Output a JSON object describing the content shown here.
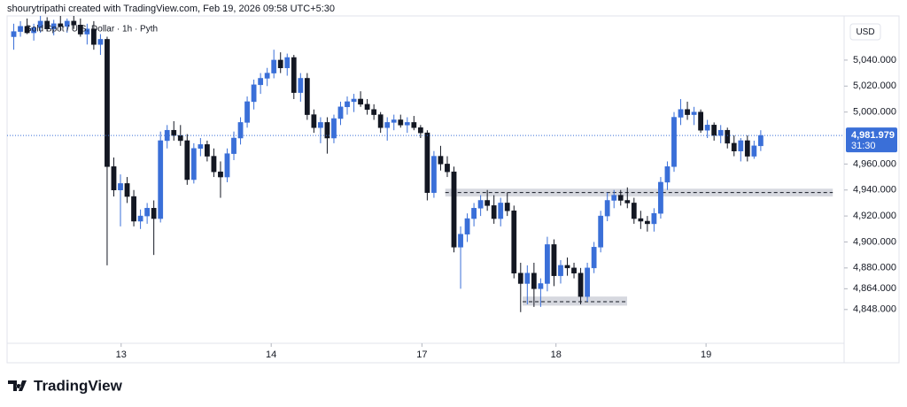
{
  "header": {
    "attribution": "shourytripathi created with TradingView.com, Feb 19, 2026 09:58 UTC+5:30",
    "symbol": "Gold Spot / U.S. Dollar · 1h · Pyth"
  },
  "chart_data": {
    "type": "candlestick",
    "currency": "USD",
    "open": [
      5058,
      5062,
      5066,
      5061,
      5065,
      5070,
      5064,
      5068,
      5066,
      5070,
      5067,
      5060,
      5064,
      5052,
      5056,
      4958,
      4940,
      4945,
      4935,
      4916,
      4920,
      4926,
      4918,
      4978,
      4986,
      4982,
      4978,
      4948,
      4972,
      4975,
      4966,
      4954,
      4950,
      4968,
      4980,
      4992,
      5008,
      5021,
      5026,
      5030,
      5040,
      5034,
      5042,
      5015,
      5026,
      4998,
      4988,
      4992,
      4980,
      4995,
      5004,
      5008,
      5010,
      5006,
      5002,
      4998,
      4988,
      4992,
      4994,
      4990,
      4992,
      4988,
      4984,
      4938,
      4966,
      4960,
      4954,
      4896,
      4906,
      4918,
      4926,
      4932,
      4928,
      4918,
      4930,
      4924,
      4876,
      4868,
      4876,
      4864,
      4868,
      4898,
      4874,
      4882,
      4880,
      4876,
      4858,
      4880,
      4896,
      4920,
      4932,
      4936,
      4932,
      4930,
      4918,
      4916,
      4914,
      4922,
      4946,
      4958,
      4996,
      5002,
      4998,
      5000,
      4986,
      4990,
      4982,
      4986,
      4976,
      4970,
      4978,
      4966,
      4974
    ],
    "high": [
      5068,
      5070,
      5072,
      5068,
      5074,
      5073,
      5071,
      5074,
      5072,
      5074,
      5072,
      5068,
      5070,
      5060,
      5058,
      4965,
      4952,
      4950,
      4940,
      4925,
      4930,
      4932,
      4985,
      4990,
      4993,
      4990,
      4983,
      4976,
      4980,
      4978,
      4972,
      4962,
      4972,
      4985,
      4996,
      5012,
      5025,
      5030,
      5034,
      5048,
      5046,
      5045,
      5044,
      5030,
      5030,
      5002,
      4996,
      4996,
      4998,
      5008,
      5012,
      5014,
      5016,
      5010,
      5006,
      5000,
      4996,
      4998,
      4998,
      4996,
      4997,
      4990,
      4986,
      4970,
      4974,
      4966,
      4958,
      4912,
      4922,
      4930,
      4936,
      4940,
      4936,
      4934,
      4938,
      4928,
      4884,
      4882,
      4884,
      4872,
      4904,
      4902,
      4886,
      4888,
      4884,
      4880,
      4884,
      4900,
      4924,
      4938,
      4940,
      4940,
      4942,
      4934,
      4924,
      4920,
      4926,
      4950,
      4962,
      5000,
      5010,
      5008,
      5004,
      5002,
      4994,
      4992,
      4990,
      4988,
      4982,
      4980,
      4982,
      4978,
      4986
    ],
    "low": [
      5048,
      5058,
      5060,
      5055,
      5061,
      5062,
      5059,
      5063,
      5061,
      5064,
      5058,
      5052,
      5048,
      5044,
      4882,
      4935,
      4912,
      4930,
      4912,
      4910,
      4914,
      4890,
      4915,
      4972,
      4978,
      4974,
      4944,
      4945,
      4966,
      4962,
      4950,
      4934,
      4946,
      4963,
      4975,
      4988,
      5002,
      5014,
      5020,
      5026,
      5030,
      5028,
      5010,
      5008,
      4994,
      4984,
      4976,
      4968,
      4976,
      4990,
      4998,
      5000,
      5004,
      4998,
      4994,
      4984,
      4978,
      4986,
      4988,
      4984,
      4986,
      4980,
      4932,
      4934,
      4955,
      4950,
      4892,
      4864,
      4900,
      4912,
      4920,
      4924,
      4914,
      4912,
      4920,
      4872,
      4846,
      4852,
      4850,
      4850,
      4862,
      4866,
      4868,
      4874,
      4872,
      4852,
      4854,
      4876,
      4892,
      4916,
      4926,
      4928,
      4926,
      4914,
      4910,
      4908,
      4908,
      4918,
      4940,
      4954,
      4990,
      4994,
      4990,
      4984,
      4980,
      4978,
      4976,
      4972,
      4966,
      4962,
      4962,
      4964,
      4970
    ],
    "close": [
      5062,
      5066,
      5061,
      5065,
      5070,
      5064,
      5068,
      5066,
      5070,
      5067,
      5060,
      5064,
      5052,
      5056,
      4958,
      4940,
      4945,
      4935,
      4916,
      4920,
      4926,
      4918,
      4978,
      4986,
      4982,
      4978,
      4948,
      4972,
      4975,
      4966,
      4954,
      4950,
      4968,
      4980,
      4992,
      5008,
      5021,
      5026,
      5030,
      5040,
      5034,
      5042,
      5015,
      5026,
      4998,
      4988,
      4992,
      4980,
      4995,
      5004,
      5008,
      5010,
      5006,
      5002,
      4998,
      4988,
      4992,
      4994,
      4990,
      4992,
      4988,
      4984,
      4938,
      4966,
      4960,
      4954,
      4896,
      4906,
      4918,
      4926,
      4932,
      4928,
      4918,
      4930,
      4924,
      4876,
      4868,
      4876,
      4864,
      4868,
      4898,
      4874,
      4882,
      4880,
      4876,
      4858,
      4880,
      4896,
      4920,
      4932,
      4936,
      4932,
      4930,
      4918,
      4916,
      4914,
      4922,
      4946,
      4958,
      4996,
      5002,
      4998,
      5000,
      4986,
      4990,
      4982,
      4986,
      4976,
      4970,
      4978,
      4966,
      4974,
      4981.979
    ],
    "up_color": "#3a6fd8",
    "down_color": "#131722",
    "xlim": [
      -1,
      124.5
    ],
    "xticks": [
      {
        "value": 16.1,
        "label": "13"
      },
      {
        "value": 38.6,
        "label": "14"
      },
      {
        "value": 61.2,
        "label": "17"
      },
      {
        "value": 81.3,
        "label": "18"
      },
      {
        "value": 103.8,
        "label": "19"
      }
    ],
    "ylim": [
      4822,
      5074
    ],
    "yticks": [
      {
        "value": 4848,
        "label": "4,848.000"
      },
      {
        "value": 4864,
        "label": "4,864.000"
      },
      {
        "value": 4880,
        "label": "4,880.000"
      },
      {
        "value": 4900,
        "label": "4,900.000"
      },
      {
        "value": 4920,
        "label": "4,920.000"
      },
      {
        "value": 4940,
        "label": "4,940.000"
      },
      {
        "value": 4960,
        "label": "4,960.000"
      },
      {
        "value": 5000,
        "label": "5,000.000"
      },
      {
        "value": 5020,
        "label": "5,020.000"
      },
      {
        "value": 5040,
        "label": "5,040.000"
      }
    ],
    "last_price": {
      "value": 4981.979,
      "label": "4,981.979",
      "countdown": "31:30"
    },
    "zones": [
      {
        "x": [
          64.7,
          122.8
        ],
        "y": [
          4935,
          4941
        ],
        "level": 4938
      },
      {
        "x": [
          76.3,
          91.96
        ],
        "y": [
          4851,
          4858
        ],
        "level": 4854
      }
    ]
  },
  "footer": {
    "brand": "TradingView"
  }
}
